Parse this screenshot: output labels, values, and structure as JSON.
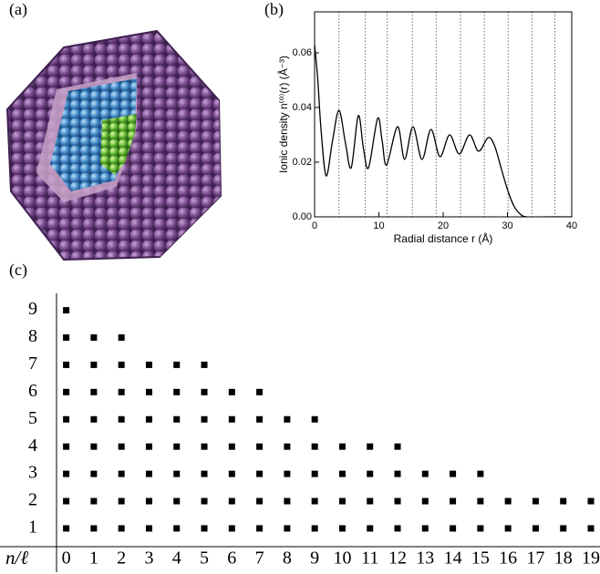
{
  "panel_a": {
    "label": "(a)"
  },
  "chart_data": [
    {
      "type": "line",
      "panel_label": "(b)",
      "x_label": "Radial distance r (Å)",
      "y_label": "Ionic density n⁽⁰⁾(r) (Å⁻³)",
      "xlim": [
        0,
        40
      ],
      "ylim": [
        0,
        0.075
      ],
      "xticks": [
        0,
        10,
        20,
        30,
        40
      ],
      "yticks": [
        {
          "value": 0,
          "label": "0.00"
        },
        {
          "value": 0.02,
          "label": "0.02"
        },
        {
          "value": 0.04,
          "label": "0.04"
        },
        {
          "value": 0.06,
          "label": "0.06"
        }
      ],
      "shell_boundaries": [
        3.8,
        7.9,
        11.3,
        15.2,
        18.9,
        22.7,
        26.4,
        30.1,
        33.8,
        37.4
      ],
      "color": "#000000",
      "x": [
        0,
        0.5,
        1,
        1.8,
        2.8,
        3.8,
        4.8,
        5.7,
        6.8,
        7.6,
        8.4,
        9.8,
        10.5,
        11.2,
        12.9,
        14.0,
        15.3,
        16.7,
        18.1,
        19.5,
        21.0,
        22.5,
        24.1,
        25.5,
        27.0,
        28.0,
        29.0,
        30.0,
        31.0,
        32.0,
        33.0,
        36.0,
        40.0
      ],
      "values": [
        0.063,
        0.05,
        0.032,
        0.015,
        0.028,
        0.039,
        0.027,
        0.018,
        0.037,
        0.025,
        0.018,
        0.036,
        0.028,
        0.019,
        0.033,
        0.021,
        0.033,
        0.021,
        0.032,
        0.022,
        0.03,
        0.023,
        0.03,
        0.024,
        0.029,
        0.026,
        0.018,
        0.01,
        0.004,
        0.001,
        0,
        0,
        0
      ]
    },
    {
      "type": "scatter",
      "panel_label": "(c)",
      "corner_label": "n/ℓ",
      "xlim": [
        -0.35,
        19.33
      ],
      "ylim": [
        0.33,
        9.62
      ],
      "xticks": [
        0,
        1,
        2,
        3,
        4,
        5,
        6,
        7,
        8,
        9,
        10,
        11,
        12,
        13,
        14,
        15,
        16,
        17,
        18,
        19
      ],
      "yticks": [
        1,
        2,
        3,
        4,
        5,
        6,
        7,
        8,
        9
      ],
      "color": "#000000",
      "x": [
        0,
        1,
        2,
        3,
        4,
        5,
        6,
        7,
        8,
        9,
        10,
        11,
        12,
        13,
        14,
        15,
        16,
        17,
        18,
        19,
        0,
        1,
        2,
        3,
        4,
        5,
        6,
        7,
        8,
        9,
        10,
        11,
        12,
        13,
        14,
        15,
        16,
        17,
        18,
        19,
        0,
        1,
        2,
        3,
        4,
        5,
        6,
        7,
        8,
        9,
        10,
        11,
        12,
        13,
        14,
        15,
        0,
        1,
        2,
        3,
        4,
        5,
        6,
        7,
        8,
        9,
        10,
        11,
        12,
        0,
        1,
        2,
        3,
        4,
        5,
        6,
        7,
        8,
        9,
        0,
        1,
        2,
        3,
        4,
        5,
        6,
        7,
        0,
        1,
        2,
        3,
        4,
        5,
        0,
        1,
        2,
        0
      ],
      "values": [
        1,
        1,
        1,
        1,
        1,
        1,
        1,
        1,
        1,
        1,
        1,
        1,
        1,
        1,
        1,
        1,
        1,
        1,
        1,
        1,
        2,
        2,
        2,
        2,
        2,
        2,
        2,
        2,
        2,
        2,
        2,
        2,
        2,
        2,
        2,
        2,
        2,
        2,
        2,
        2,
        3,
        3,
        3,
        3,
        3,
        3,
        3,
        3,
        3,
        3,
        3,
        3,
        3,
        3,
        3,
        3,
        4,
        4,
        4,
        4,
        4,
        4,
        4,
        4,
        4,
        4,
        4,
        4,
        4,
        5,
        5,
        5,
        5,
        5,
        5,
        5,
        5,
        5,
        5,
        6,
        6,
        6,
        6,
        6,
        6,
        6,
        6,
        7,
        7,
        7,
        7,
        7,
        7,
        8,
        8,
        8,
        9
      ]
    }
  ]
}
